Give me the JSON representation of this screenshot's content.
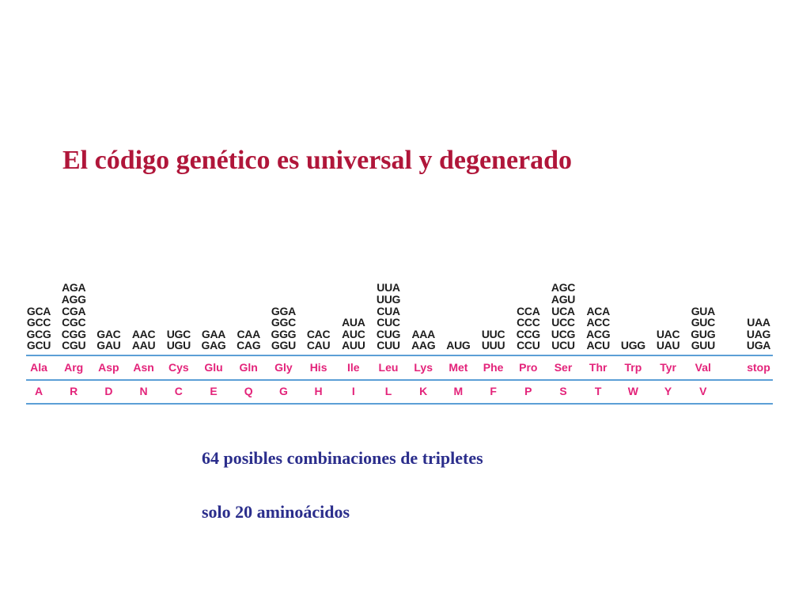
{
  "title": "El código genético es universal y degenerado",
  "amino_acids": [
    {
      "codons": [
        "GCA",
        "GCC",
        "GCG",
        "GCU"
      ],
      "three": "Ala",
      "one": "A"
    },
    {
      "codons": [
        "AGA",
        "AGG",
        "CGA",
        "CGC",
        "CGG",
        "CGU"
      ],
      "three": "Arg",
      "one": "R"
    },
    {
      "codons": [
        "GAC",
        "GAU"
      ],
      "three": "Asp",
      "one": "D"
    },
    {
      "codons": [
        "AAC",
        "AAU"
      ],
      "three": "Asn",
      "one": "N"
    },
    {
      "codons": [
        "UGC",
        "UGU"
      ],
      "three": "Cys",
      "one": "C"
    },
    {
      "codons": [
        "GAA",
        "GAG"
      ],
      "three": "Glu",
      "one": "E"
    },
    {
      "codons": [
        "CAA",
        "CAG"
      ],
      "three": "Gln",
      "one": "Q"
    },
    {
      "codons": [
        "GGA",
        "GGC",
        "GGG",
        "GGU"
      ],
      "three": "Gly",
      "one": "G"
    },
    {
      "codons": [
        "CAC",
        "CAU"
      ],
      "three": "His",
      "one": "H"
    },
    {
      "codons": [
        "AUA",
        "AUC",
        "AUU"
      ],
      "three": "Ile",
      "one": "I"
    },
    {
      "codons": [
        "UUA",
        "UUG",
        "CUA",
        "CUC",
        "CUG",
        "CUU"
      ],
      "three": "Leu",
      "one": "L"
    },
    {
      "codons": [
        "AAA",
        "AAG"
      ],
      "three": "Lys",
      "one": "K"
    },
    {
      "codons": [
        "AUG"
      ],
      "three": "Met",
      "one": "M"
    },
    {
      "codons": [
        "UUC",
        "UUU"
      ],
      "three": "Phe",
      "one": "F"
    },
    {
      "codons": [
        "CCA",
        "CCC",
        "CCG",
        "CCU"
      ],
      "three": "Pro",
      "one": "P"
    },
    {
      "codons": [
        "AGC",
        "AGU",
        "UCA",
        "UCC",
        "UCG",
        "UCU"
      ],
      "three": "Ser",
      "one": "S"
    },
    {
      "codons": [
        "ACA",
        "ACC",
        "ACG",
        "ACU"
      ],
      "three": "Thr",
      "one": "T"
    },
    {
      "codons": [
        "UGG"
      ],
      "three": "Trp",
      "one": "W"
    },
    {
      "codons": [
        "UAC",
        "UAU"
      ],
      "three": "Tyr",
      "one": "Y"
    },
    {
      "codons": [
        "GUA",
        "GUC",
        "GUG",
        "GUU"
      ],
      "three": "Val",
      "one": "V"
    },
    {
      "codons": [
        "UAA",
        "UAG",
        "UGA"
      ],
      "three": "stop",
      "one": ""
    }
  ],
  "notes": {
    "combinations": "64 posibles combinaciones de tripletes",
    "amino_count": "solo 20 aminoácidos"
  }
}
